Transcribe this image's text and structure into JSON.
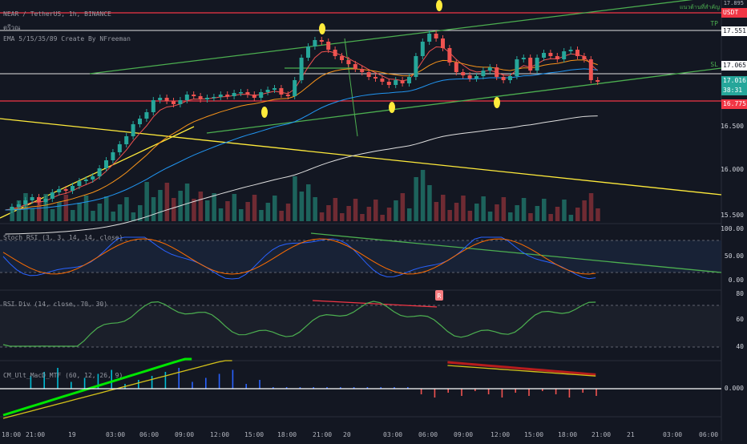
{
  "header": {
    "symbol_line": "NEAR / TetherUS, 1h, BINANCE",
    "sub_line": "ตรีวณ",
    "ema_line": "EMA 5/15/35/89 Create By NFreeman"
  },
  "panes": {
    "stoch_label": "Stoch RSI (3, 3, 14, 14, close)",
    "rsi_label": "RSI Div (14, close, 70, 30)",
    "macd_label": "CM_Ult_MacD_MTF (60, 12, 26, 9)"
  },
  "price_axis": {
    "top_text": "แนวต้านที่สำคัญ",
    "currency": "USDT",
    "tp_label": "TP",
    "sl_label": "SL",
    "level_17551": "17.551",
    "level_17065": "17.065",
    "current_price": "17.016",
    "countdown": "38:31",
    "support": "16.775",
    "tick_16500": "16.500",
    "tick_16000": "16.000",
    "tick_15500": "15.500",
    "top_partial": "17.895"
  },
  "stoch_axis": [
    "100.00",
    "50.00",
    "0.00"
  ],
  "rsi_axis": [
    "80",
    "60",
    "40"
  ],
  "rsi_marker": "R",
  "macd_axis": "0.000",
  "time_axis": [
    "18:00",
    "21:00",
    "19",
    "03:00",
    "06:00",
    "09:00",
    "12:00",
    "15:00",
    "18:00",
    "21:00",
    "20",
    "03:00",
    "06:00",
    "09:00",
    "12:00",
    "15:00",
    "18:00",
    "21:00",
    "21",
    "03:00",
    "06:00"
  ],
  "colors": {
    "background": "#131722",
    "bull": "#26a69a",
    "bear": "#ef5350",
    "resistance": "#f23645",
    "trend_green": "#4caf50",
    "trend_yellow": "#ffeb3b",
    "ema_orange": "#f7931a",
    "ema_blue": "#2196f3",
    "ema_white": "#e0e0e0"
  }
}
